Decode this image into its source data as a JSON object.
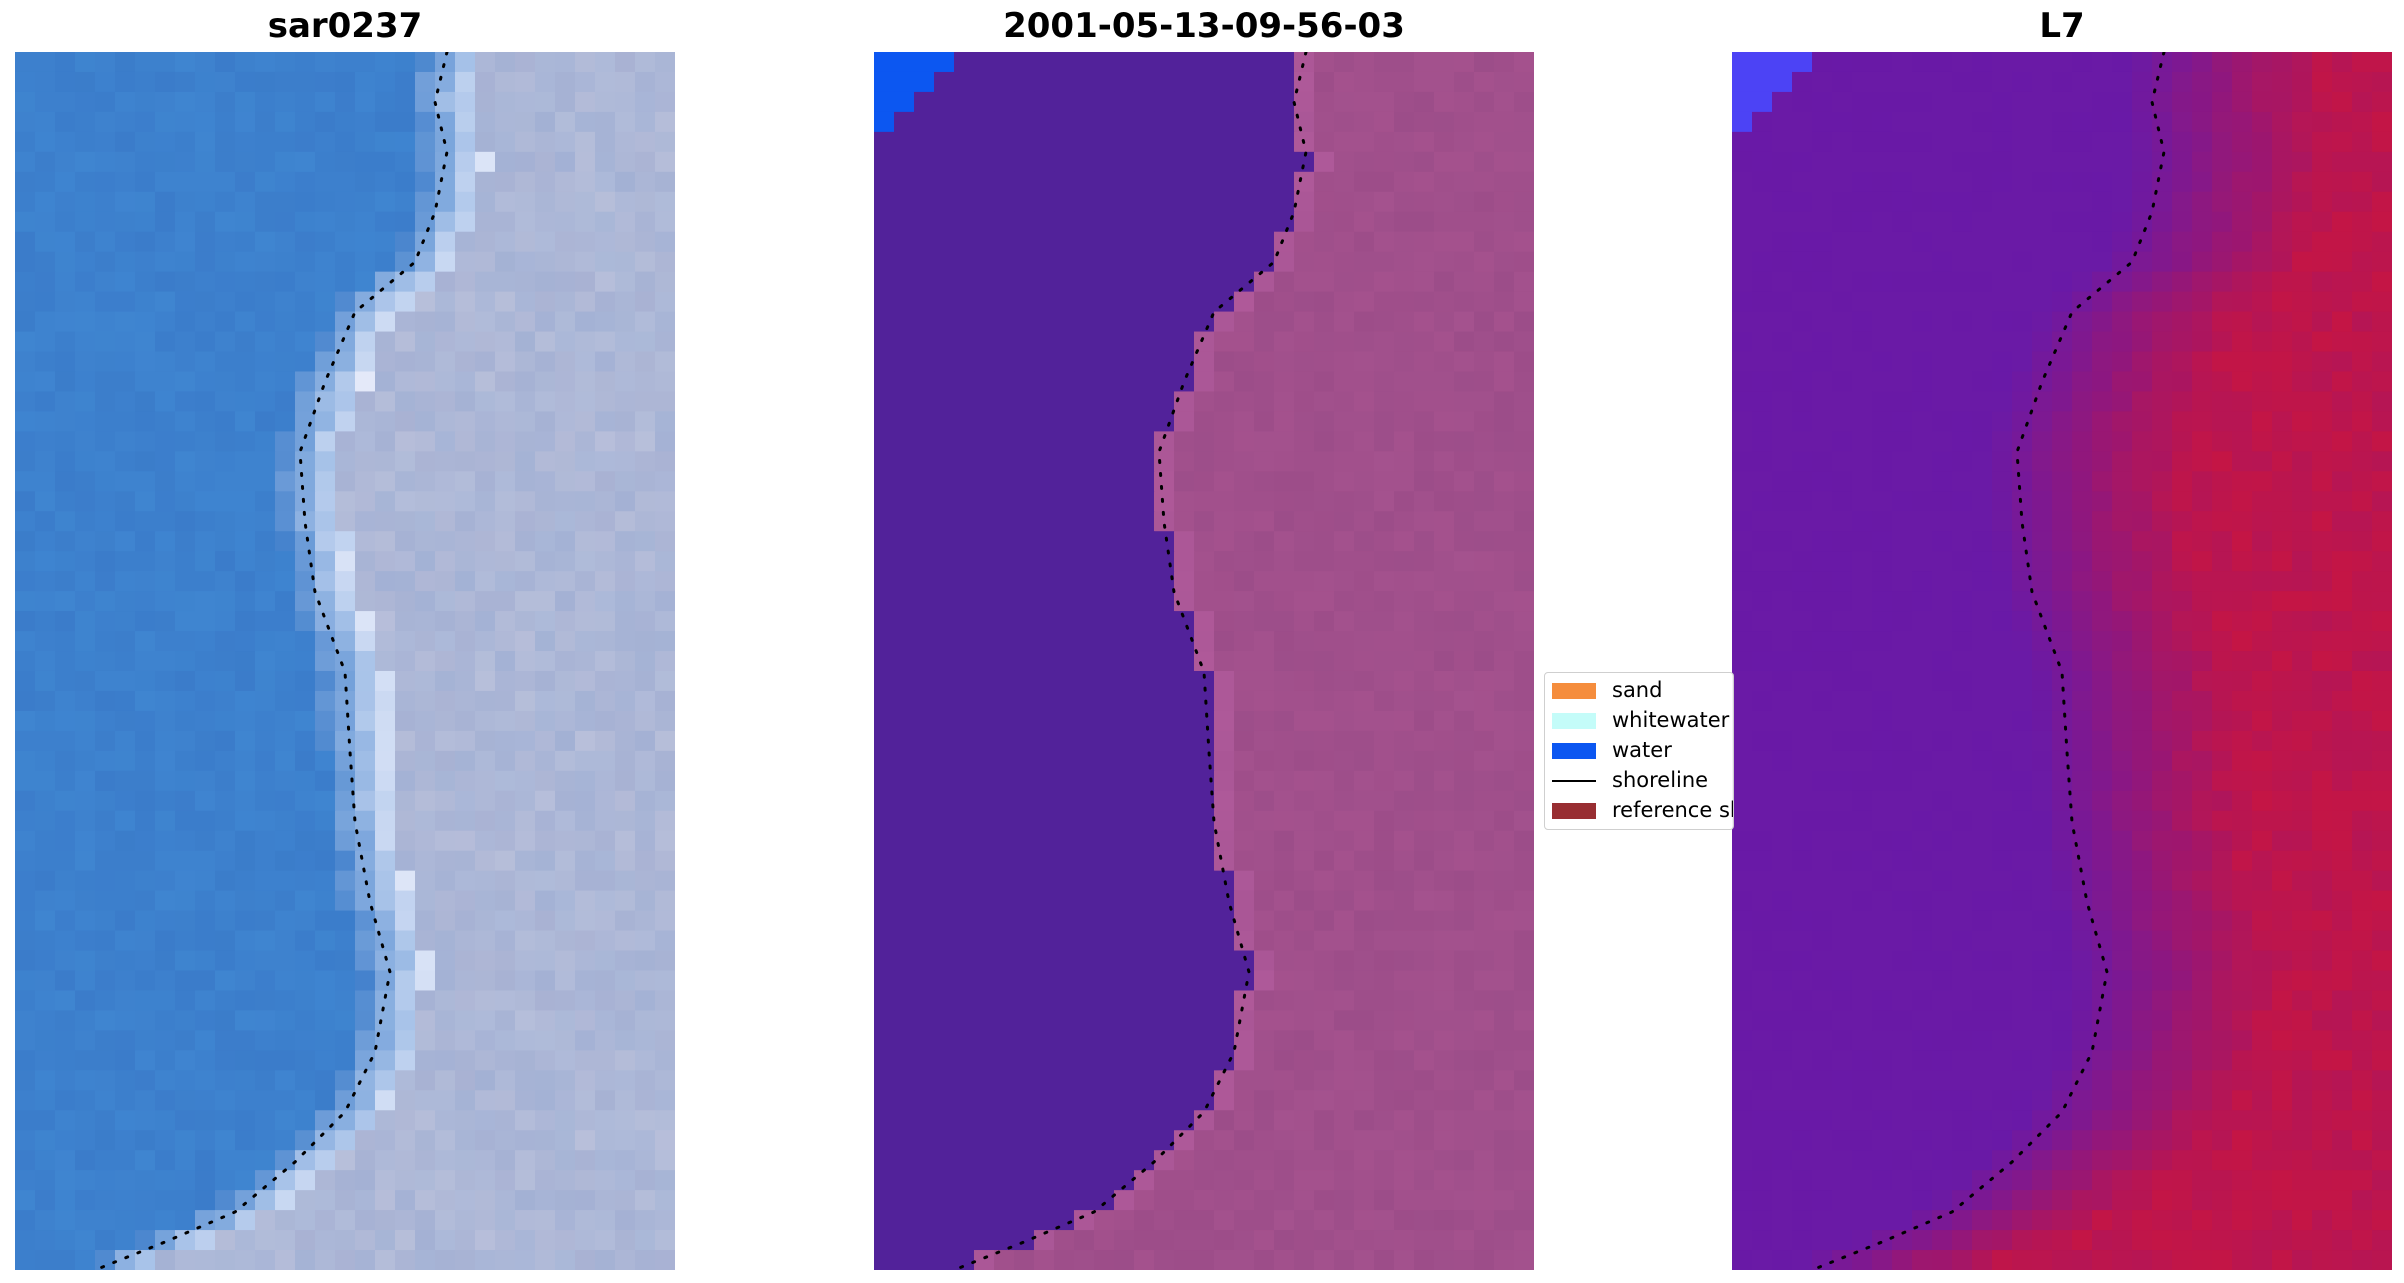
{
  "panels": [
    {
      "title": "sar0237"
    },
    {
      "title": "2001-05-13-09-56-03"
    },
    {
      "title": "L7"
    }
  ],
  "legend": {
    "items": [
      {
        "label": "sand",
        "color": "#f58d3d",
        "kind": "patch"
      },
      {
        "label": "whitewater",
        "color": "#c4fcf9",
        "kind": "patch"
      },
      {
        "label": "water",
        "color": "#0c57f1",
        "kind": "patch"
      },
      {
        "label": "shoreline",
        "color": "#000000",
        "kind": "line"
      },
      {
        "label": "reference sh",
        "color": "#982e32",
        "kind": "patch"
      }
    ]
  },
  "colors": {
    "rgb_water": "#3b7cca",
    "rgb_land": "#a9b2d3",
    "classified_water": "#52229a",
    "classified_land": "#9c4d89",
    "classified_corner_water": "#0c57f1",
    "mndwi_water": "#6a1aa6",
    "mndwi_land": "#c41545",
    "mndwi_corner": "#4c43f5",
    "shoreline": "#000000"
  }
}
